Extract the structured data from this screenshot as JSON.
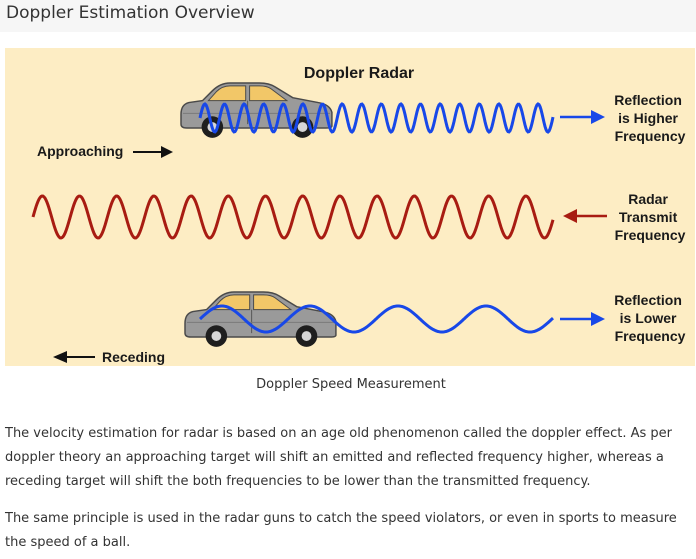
{
  "page": {
    "title": "Doppler Estimation Overview"
  },
  "figure": {
    "title": "Doppler Radar",
    "approaching_label": "Approaching",
    "receding_label": "Receding",
    "reflection_higher": [
      "Reflection",
      "is Higher",
      "Frequency"
    ],
    "radar_transmit": [
      "Radar",
      "Transmit",
      "Frequency"
    ],
    "reflection_lower": [
      "Reflection",
      "is Lower",
      "Frequency"
    ],
    "caption": "Doppler Speed Measurement",
    "colors": {
      "background": "#fdedc4",
      "reflected_wave": "#1848e8",
      "transmit_wave": "#a81c12",
      "car_body": "#9a9a9a",
      "car_window": "#f2c768"
    }
  },
  "paragraphs": [
    "The velocity estimation for radar is based on an age old phenomenon called the doppler effect. As per doppler theory an approaching target will shift an emitted and reflected frequency higher, whereas a receding target will shift the both frequencies to be lower than the transmitted frequency.",
    "The same principle is used in the radar guns to catch the speed violators, or even in sports to measure the speed of a ball."
  ]
}
